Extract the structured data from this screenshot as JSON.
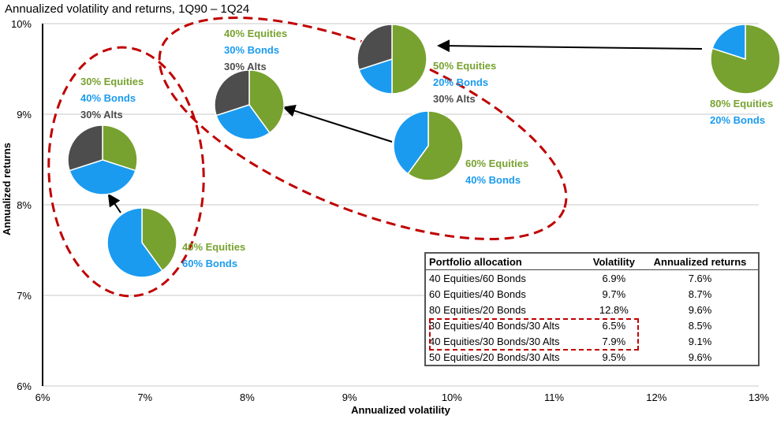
{
  "chart_data": {
    "type": "scatter",
    "title": "Annualized volatility and returns, 1Q90 – 1Q24",
    "xlabel": "Annualized volatility",
    "ylabel": "Annualized returns",
    "xlim": [
      6,
      13
    ],
    "ylim": [
      6,
      10
    ],
    "xticks": [
      "6%",
      "7%",
      "8%",
      "9%",
      "10%",
      "11%",
      "12%",
      "13%"
    ],
    "yticks": [
      "6%",
      "7%",
      "8%",
      "9%",
      "10%"
    ],
    "grid": "horizontal",
    "colors": {
      "equities": "#77a22f",
      "bonds": "#1a9bf0",
      "alts": "#4d4d4d",
      "highlight": "#c00000"
    },
    "portfolios": [
      {
        "name": "40 Equities/60 Bonds",
        "volatility": "6.9%",
        "returns": "7.6%",
        "equities": 40,
        "bonds": 60,
        "alts": 0,
        "labels": [
          "40% Equities",
          "60% Bonds"
        ]
      },
      {
        "name": "60 Equities/40 Bonds",
        "volatility": "9.7%",
        "returns": "8.7%",
        "equities": 60,
        "bonds": 40,
        "alts": 0,
        "labels": [
          "60% Equities",
          "40% Bonds"
        ]
      },
      {
        "name": "80 Equities/20 Bonds",
        "volatility": "12.8%",
        "returns": "9.6%",
        "equities": 80,
        "bonds": 20,
        "alts": 0,
        "labels": [
          "80% Equities",
          "20% Bonds"
        ]
      },
      {
        "name": "30 Equities/40 Bonds/30 Alts",
        "volatility": "6.5%",
        "returns": "8.5%",
        "equities": 30,
        "bonds": 40,
        "alts": 30,
        "labels": [
          "30% Equities",
          "40% Bonds",
          "30% Alts"
        ]
      },
      {
        "name": "40 Equities/30 Bonds/30 Alts",
        "volatility": "7.9%",
        "returns": "9.1%",
        "equities": 40,
        "bonds": 30,
        "alts": 30,
        "labels": [
          "40% Equities",
          "30% Bonds",
          "30% Alts"
        ]
      },
      {
        "name": "50 Equities/20 Bonds/30 Alts",
        "volatility": "9.5%",
        "returns": "9.6%",
        "equities": 50,
        "bonds": 20,
        "alts": 30,
        "labels": [
          "50% Equities",
          "20% Bonds",
          "30% Alts"
        ]
      }
    ],
    "table": {
      "headers": [
        "Portfolio allocation",
        "Volatility",
        "Annualized returns"
      ]
    }
  }
}
